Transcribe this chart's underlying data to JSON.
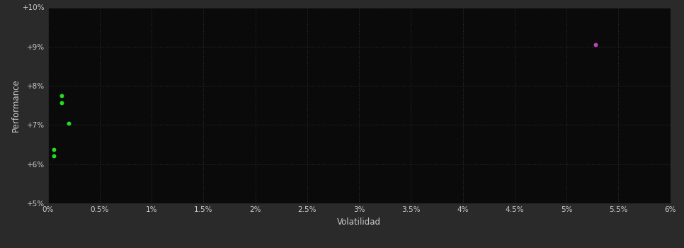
{
  "background_color": "#2a2a2a",
  "plot_bg_color": "#0a0a0a",
  "grid_color": "#3a3a3a",
  "text_color": "#cccccc",
  "xlabel": "Volatilidad",
  "ylabel": "Performance",
  "xlim": [
    0,
    0.06
  ],
  "ylim": [
    0.05,
    0.1
  ],
  "xtick_values": [
    0.0,
    0.005,
    0.01,
    0.015,
    0.02,
    0.025,
    0.03,
    0.035,
    0.04,
    0.045,
    0.05,
    0.055,
    0.06
  ],
  "xtick_labels": [
    "0%",
    "0.5%",
    "1%",
    "1.5%",
    "2%",
    "2.5%",
    "3%",
    "3.5%",
    "4%",
    "4.5%",
    "5%",
    "5.5%",
    "6%"
  ],
  "ytick_values": [
    0.05,
    0.06,
    0.07,
    0.08,
    0.09,
    0.1
  ],
  "ytick_labels": [
    "+5%",
    "+6%",
    "+7%",
    "+8%",
    "+9%",
    "+10%"
  ],
  "green_points": [
    [
      0.0013,
      0.0775
    ],
    [
      0.0013,
      0.0757
    ],
    [
      0.002,
      0.0705
    ],
    [
      0.0006,
      0.0638
    ],
    [
      0.0006,
      0.0622
    ]
  ],
  "magenta_points": [
    [
      0.0528,
      0.0905
    ]
  ],
  "green_color": "#22dd22",
  "magenta_color": "#bb44bb",
  "point_size": 18,
  "figsize": [
    9.66,
    3.5
  ],
  "dpi": 100
}
